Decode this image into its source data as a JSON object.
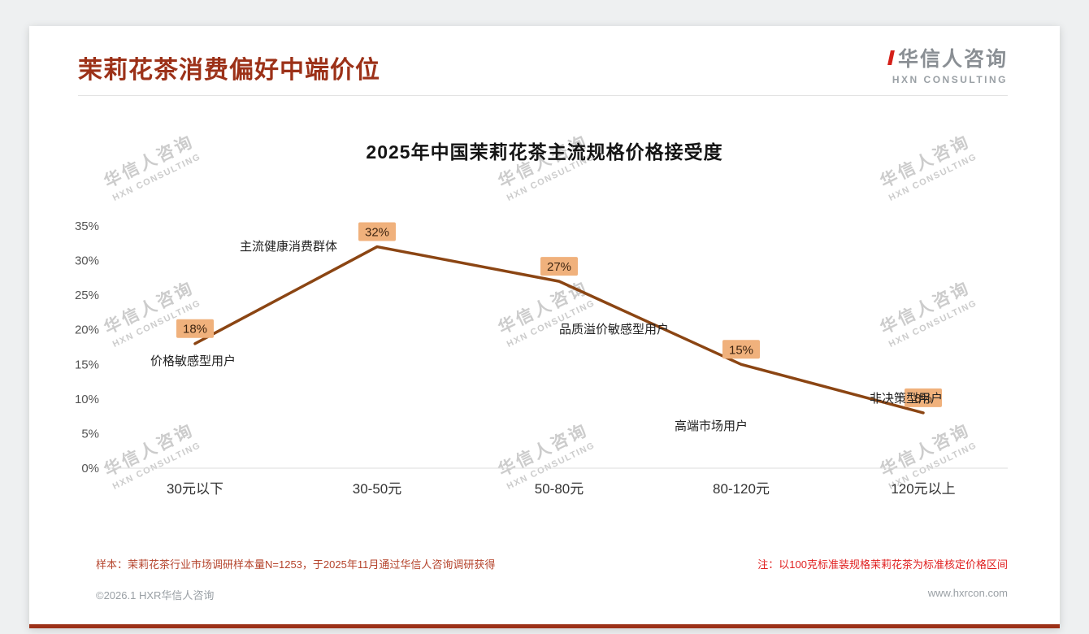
{
  "colors": {
    "accent": "#9C3118",
    "line": "#8B4513",
    "label_bg": "#F0B17C",
    "note_left": "#B5442C",
    "note_right": "#E01F1F",
    "watermark": "#CCCCCC"
  },
  "header": {
    "title": "茉莉花茶消费偏好中端价位",
    "logo_name": "华信人咨询",
    "logo_subtitle": "HXN CONSULTING"
  },
  "watermark": {
    "line1": "华信人咨询",
    "line2": "HXN CONSULTING"
  },
  "chart_data": {
    "type": "line",
    "title": "2025年中国茉莉花茶主流规格价格接受度",
    "categories": [
      "30元以下",
      "30-50元",
      "50-80元",
      "80-120元",
      "120元以上"
    ],
    "values": [
      18,
      32,
      27,
      15,
      8
    ],
    "data_labels": [
      "18%",
      "32%",
      "27%",
      "15%",
      "8%"
    ],
    "annotations": [
      "价格敏感型用户",
      "主流健康消费群体",
      "品质溢价敏感型用户",
      "高端市场用户",
      "非决策型用户"
    ],
    "xlabel": "",
    "ylabel": "",
    "ylim": [
      0,
      35
    ],
    "ytick_values": [
      0,
      5,
      10,
      15,
      20,
      25,
      30,
      35
    ],
    "ytick_labels": [
      "0%",
      "5%",
      "10%",
      "15%",
      "20%",
      "25%",
      "30%",
      "35%"
    ],
    "grid": false,
    "legend": false,
    "line_width": 3.5
  },
  "footer": {
    "note_left": "样本：茉莉花茶行业市场调研样本量N=1253，于2025年11月通过华信人咨询调研获得",
    "note_right": "注：以100克标准装规格茉莉花茶为标准核定价格区间",
    "copyright": "©2026.1 HXR华信人咨询",
    "website": "www.hxrcon.com"
  }
}
